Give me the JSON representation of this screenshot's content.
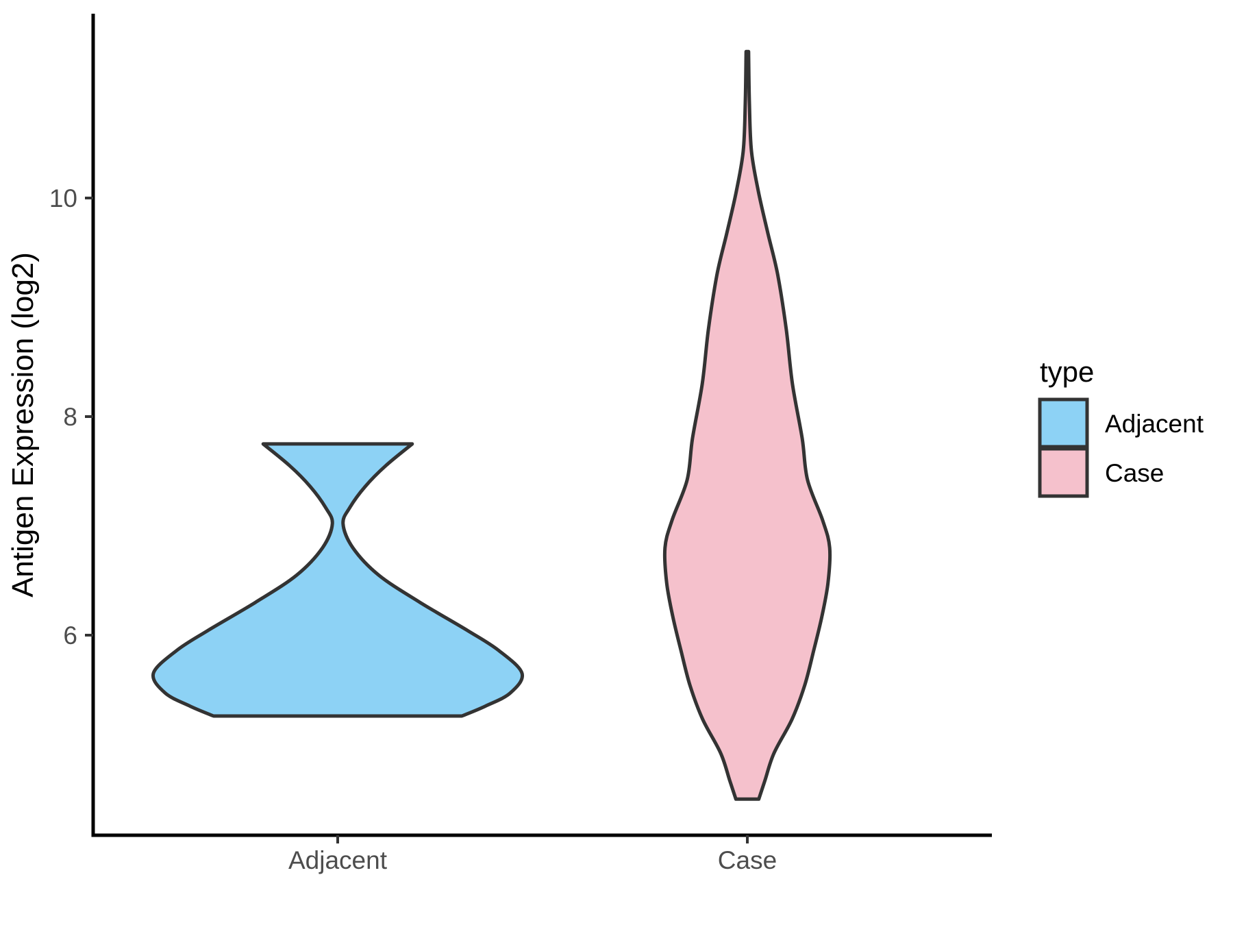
{
  "figure": {
    "background": "#ffffff"
  },
  "chart_data": {
    "type": "violin",
    "title": "",
    "xlabel": "",
    "ylabel": "Antigen Expression (log2)",
    "categories": [
      "Adjacent",
      "Case"
    ],
    "y_ticks": [
      "6",
      "8",
      "10"
    ],
    "y_tick_values": [
      6,
      8,
      10
    ],
    "ylim": [
      4.2,
      11.7
    ],
    "grid": "off",
    "legend_position": "right",
    "colors": {
      "axis_line": "#000000",
      "tick_mark": "#333333",
      "tick_label": "#4d4d4d",
      "violin_outline": "#333333",
      "adjacent_fill": "#8dd2f5",
      "case_fill": "#f5c1cc"
    },
    "series": [
      {
        "name": "Adjacent",
        "fill": "#8dd2f5",
        "min": 5.26,
        "max": 7.75,
        "waist_at": 7.02,
        "peak_density_at": 5.65,
        "profile": [
          {
            "value": 7.75,
            "halfwidth": 0.182
          },
          {
            "value": 7.55,
            "halfwidth": 0.117
          },
          {
            "value": 7.36,
            "halfwidth": 0.067
          },
          {
            "value": 7.17,
            "halfwidth": 0.03
          },
          {
            "value": 7.02,
            "halfwidth": 0.013
          },
          {
            "value": 6.8,
            "halfwidth": 0.037
          },
          {
            "value": 6.55,
            "halfwidth": 0.1
          },
          {
            "value": 6.3,
            "halfwidth": 0.201
          },
          {
            "value": 6.04,
            "halfwidth": 0.318
          },
          {
            "value": 5.86,
            "halfwidth": 0.393
          },
          {
            "value": 5.65,
            "halfwidth": 0.45
          },
          {
            "value": 5.47,
            "halfwidth": 0.421
          },
          {
            "value": 5.35,
            "halfwidth": 0.36
          },
          {
            "value": 5.26,
            "halfwidth": 0.303
          }
        ]
      },
      {
        "name": "Case",
        "fill": "#f5c1cc",
        "min": 4.5,
        "max": 11.34,
        "peak_density_at": 6.8,
        "profile": [
          {
            "value": 11.34,
            "halfwidth": 0.003
          },
          {
            "value": 10.87,
            "halfwidth": 0.005
          },
          {
            "value": 10.43,
            "halfwidth": 0.01
          },
          {
            "value": 10.06,
            "halfwidth": 0.027
          },
          {
            "value": 9.68,
            "halfwidth": 0.05
          },
          {
            "value": 9.3,
            "halfwidth": 0.074
          },
          {
            "value": 8.8,
            "halfwidth": 0.095
          },
          {
            "value": 8.3,
            "halfwidth": 0.11
          },
          {
            "value": 7.8,
            "halfwidth": 0.134
          },
          {
            "value": 7.42,
            "halfwidth": 0.147
          },
          {
            "value": 7.05,
            "halfwidth": 0.184
          },
          {
            "value": 6.8,
            "halfwidth": 0.201
          },
          {
            "value": 6.48,
            "halfwidth": 0.197
          },
          {
            "value": 6.17,
            "halfwidth": 0.182
          },
          {
            "value": 5.86,
            "halfwidth": 0.162
          },
          {
            "value": 5.54,
            "halfwidth": 0.14
          },
          {
            "value": 5.23,
            "halfwidth": 0.109
          },
          {
            "value": 4.92,
            "halfwidth": 0.065
          },
          {
            "value": 4.67,
            "halfwidth": 0.043
          },
          {
            "value": 4.5,
            "halfwidth": 0.028
          }
        ]
      }
    ],
    "legend": {
      "title": "type",
      "entries": [
        {
          "label": "Adjacent",
          "color": "#8dd2f5"
        },
        {
          "label": "Case",
          "color": "#f5c1cc"
        }
      ]
    }
  }
}
